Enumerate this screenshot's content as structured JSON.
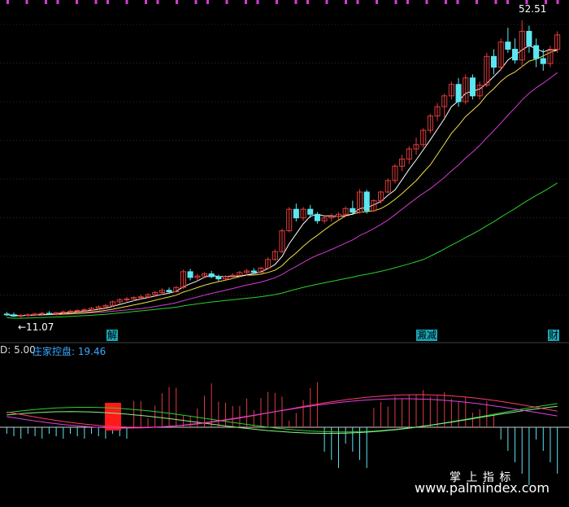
{
  "chart_data": [
    {
      "type": "candlestick",
      "title": "",
      "price_high_label": "52.51",
      "price_low_label": "←11.07",
      "y_range_estimate": [
        10,
        54
      ],
      "colors": {
        "up": "#e03b3b",
        "down": "#5ce6f0",
        "ma5": "#ffffff",
        "ma10": "#f0e040",
        "ma20": "#d23cd2",
        "ma60": "#2bd12b"
      },
      "candles_ohlc": [
        [
          11.6,
          11.9,
          11.3,
          11.5
        ],
        [
          11.5,
          11.8,
          11.2,
          11.3
        ],
        [
          11.3,
          11.6,
          11.07,
          11.4
        ],
        [
          11.4,
          11.7,
          11.2,
          11.5
        ],
        [
          11.5,
          11.8,
          11.3,
          11.6
        ],
        [
          11.6,
          11.9,
          11.4,
          11.7
        ],
        [
          11.7,
          12.0,
          11.5,
          11.6
        ],
        [
          11.6,
          11.9,
          11.4,
          11.8
        ],
        [
          11.8,
          12.1,
          11.6,
          11.9
        ],
        [
          11.9,
          12.2,
          11.7,
          12.0
        ],
        [
          12.0,
          12.3,
          11.8,
          12.1
        ],
        [
          12.1,
          12.4,
          11.9,
          12.2
        ],
        [
          12.2,
          12.6,
          12.0,
          12.4
        ],
        [
          12.4,
          12.8,
          12.2,
          12.6
        ],
        [
          12.6,
          13.0,
          12.4,
          12.8
        ],
        [
          12.8,
          13.5,
          12.6,
          13.3
        ],
        [
          13.3,
          13.8,
          13.0,
          13.6
        ],
        [
          13.6,
          14.0,
          13.3,
          13.7
        ],
        [
          13.7,
          14.1,
          13.4,
          13.9
        ],
        [
          13.9,
          14.3,
          13.6,
          14.0
        ],
        [
          14.0,
          14.5,
          13.8,
          14.3
        ],
        [
          14.3,
          14.8,
          14.0,
          14.6
        ],
        [
          14.6,
          15.2,
          14.3,
          14.9
        ],
        [
          14.9,
          15.3,
          14.5,
          14.7
        ],
        [
          14.7,
          15.5,
          14.6,
          15.3
        ],
        [
          15.3,
          17.8,
          15.1,
          17.5
        ],
        [
          17.5,
          17.9,
          16.3,
          16.7
        ],
        [
          16.7,
          17.2,
          16.2,
          16.9
        ],
        [
          16.9,
          17.4,
          16.6,
          17.2
        ],
        [
          17.2,
          17.6,
          16.6,
          16.8
        ],
        [
          16.8,
          17.1,
          16.2,
          16.5
        ],
        [
          16.5,
          17.0,
          16.3,
          16.8
        ],
        [
          16.8,
          17.3,
          16.5,
          17.0
        ],
        [
          17.0,
          17.6,
          16.8,
          17.4
        ],
        [
          17.4,
          17.9,
          17.0,
          17.6
        ],
        [
          17.6,
          18.0,
          17.2,
          17.4
        ],
        [
          17.4,
          18.2,
          17.3,
          18.0
        ],
        [
          18.0,
          19.5,
          17.8,
          19.2
        ],
        [
          19.2,
          20.6,
          19.0,
          20.3
        ],
        [
          20.3,
          23.5,
          20.1,
          23.2
        ],
        [
          23.2,
          26.5,
          23.0,
          26.2
        ],
        [
          26.2,
          27.0,
          24.5,
          25.0
        ],
        [
          25.0,
          26.5,
          24.6,
          26.2
        ],
        [
          26.2,
          26.8,
          25.0,
          25.5
        ],
        [
          25.5,
          25.8,
          24.2,
          24.6
        ],
        [
          24.6,
          25.4,
          24.2,
          25.0
        ],
        [
          25.0,
          25.6,
          24.5,
          25.2
        ],
        [
          25.2,
          25.8,
          24.7,
          25.5
        ],
        [
          25.5,
          26.6,
          25.2,
          26.3
        ],
        [
          26.3,
          27.4,
          25.4,
          25.8
        ],
        [
          25.8,
          29.0,
          25.6,
          28.6
        ],
        [
          28.6,
          28.9,
          25.6,
          26.0
        ],
        [
          26.0,
          27.6,
          25.8,
          27.4
        ],
        [
          27.4,
          28.8,
          27.0,
          28.6
        ],
        [
          28.6,
          30.5,
          28.4,
          30.2
        ],
        [
          30.2,
          32.5,
          29.8,
          32.2
        ],
        [
          32.2,
          33.8,
          31.5,
          33.2
        ],
        [
          33.2,
          35.0,
          32.5,
          34.6
        ],
        [
          34.6,
          36.2,
          33.8,
          35.2
        ],
        [
          35.2,
          37.5,
          34.8,
          37.2
        ],
        [
          37.2,
          39.5,
          36.8,
          39.2
        ],
        [
          39.2,
          41.0,
          38.5,
          40.5
        ],
        [
          40.5,
          42.3,
          39.0,
          42.0
        ],
        [
          42.0,
          44.0,
          41.5,
          43.6
        ],
        [
          43.6,
          44.5,
          40.5,
          41.2
        ],
        [
          41.2,
          45.0,
          40.8,
          44.5
        ],
        [
          44.5,
          45.0,
          41.5,
          42.0
        ],
        [
          42.0,
          44.0,
          41.5,
          43.5
        ],
        [
          43.5,
          48.0,
          43.2,
          47.5
        ],
        [
          47.5,
          48.5,
          45.0,
          46.0
        ],
        [
          46.0,
          50.0,
          45.5,
          49.5
        ],
        [
          49.5,
          51.5,
          48.0,
          48.5
        ],
        [
          48.5,
          50.0,
          46.5,
          47.0
        ],
        [
          47.0,
          52.51,
          46.0,
          51.0
        ],
        [
          51.0,
          51.8,
          48.0,
          49.0
        ],
        [
          49.0,
          50.0,
          46.0,
          47.2
        ],
        [
          47.2,
          48.5,
          45.5,
          46.5
        ],
        [
          46.5,
          49.0,
          46.0,
          48.5
        ],
        [
          48.5,
          51.0,
          48.0,
          50.5
        ]
      ],
      "events": [
        {
          "label": "解",
          "index": 19
        },
        {
          "label": "澱减",
          "index": 60
        },
        {
          "label": "财",
          "index": 78
        }
      ]
    },
    {
      "type": "indicator",
      "header": [
        {
          "text": "D: 5.00",
          "color": "#dddddd"
        },
        {
          "text": "庄家控盘: 19.46",
          "color": "#3aa8ff"
        }
      ]
    }
  ],
  "watermark": {
    "line1": "掌 上 指 标",
    "line2": "www.palmindex.com"
  }
}
